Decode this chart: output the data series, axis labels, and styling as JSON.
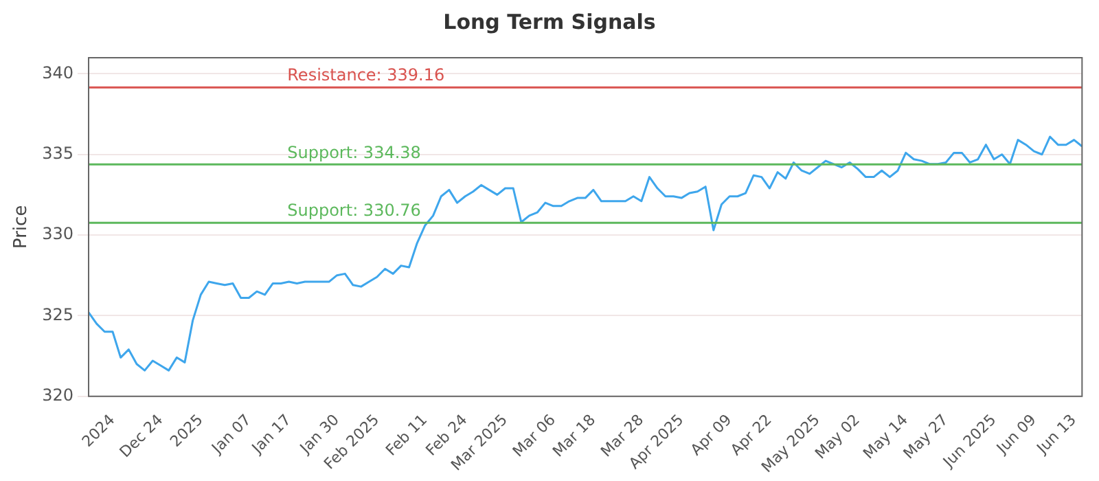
{
  "chart_data": {
    "type": "line",
    "title": "Long Term Signals",
    "ylabel": "Price",
    "categories": [
      null,
      null,
      null,
      "2024",
      null,
      null,
      null,
      null,
      null,
      "Dec 24",
      null,
      null,
      null,
      null,
      "2025",
      null,
      null,
      null,
      null,
      null,
      "Jan 07",
      null,
      null,
      null,
      null,
      "Jan 17",
      null,
      null,
      null,
      null,
      null,
      "Jan 30",
      null,
      null,
      null,
      null,
      "Feb 2025",
      null,
      null,
      null,
      null,
      null,
      "Feb 11",
      null,
      null,
      null,
      null,
      "Feb 24",
      null,
      null,
      null,
      null,
      "Mar 2025",
      null,
      null,
      null,
      null,
      null,
      "Mar 06",
      null,
      null,
      null,
      null,
      "Mar 18",
      null,
      null,
      null,
      null,
      null,
      "Mar 28",
      null,
      null,
      null,
      null,
      "Apr 2025",
      null,
      null,
      null,
      null,
      null,
      "Apr 09",
      null,
      null,
      null,
      null,
      "Apr 22",
      null,
      null,
      null,
      null,
      null,
      "May 2025",
      null,
      null,
      null,
      null,
      "May 02",
      null,
      null,
      null,
      null,
      null,
      "May 14",
      null,
      null,
      null,
      null,
      "May 27",
      null,
      null,
      null,
      null,
      null,
      "Jun 2025",
      null,
      null,
      null,
      null,
      "Jun 09",
      null,
      null,
      null,
      null,
      "Jun 13",
      null
    ],
    "series": [
      {
        "color": "#3ea6ec",
        "values": [
          325.2,
          324.5,
          324.0,
          324.0,
          322.4,
          322.9,
          322.0,
          321.6,
          322.2,
          321.9,
          321.6,
          322.4,
          322.1,
          324.7,
          326.3,
          327.1,
          327.0,
          326.9,
          327.0,
          326.1,
          326.1,
          326.5,
          326.3,
          327.0,
          327.0,
          327.1,
          327.0,
          327.1,
          327.1,
          327.1,
          327.1,
          327.5,
          327.6,
          326.9,
          326.8,
          327.1,
          327.4,
          327.9,
          327.6,
          328.1,
          328.0,
          329.5,
          330.6,
          331.2,
          332.4,
          332.8,
          332.0,
          332.4,
          332.7,
          333.1,
          332.8,
          332.5,
          332.9,
          332.9,
          330.8,
          331.2,
          331.4,
          332.0,
          331.8,
          331.8,
          332.1,
          332.3,
          332.3,
          332.8,
          332.1,
          332.1,
          332.1,
          332.1,
          332.4,
          332.1,
          333.6,
          332.9,
          332.4,
          332.4,
          332.3,
          332.6,
          332.7,
          333.0,
          330.3,
          331.9,
          332.4,
          332.4,
          332.6,
          333.7,
          333.6,
          332.9,
          333.9,
          333.5,
          334.5,
          334.0,
          333.8,
          334.2,
          334.6,
          334.4,
          334.2,
          334.5,
          334.1,
          333.6,
          333.6,
          334.0,
          333.6,
          334.0,
          335.1,
          334.7,
          334.6,
          334.4,
          334.4,
          334.5,
          335.1,
          335.1,
          334.5,
          334.7,
          335.6,
          334.7,
          335.0,
          334.4,
          335.9,
          335.6,
          335.2,
          335.0,
          336.1,
          335.6,
          335.6,
          335.9,
          335.5
        ]
      }
    ],
    "ylim": [
      320,
      341
    ],
    "yticks": [
      320,
      325,
      330,
      335,
      340
    ],
    "grid": "y",
    "legend": false,
    "marker": "none",
    "line_style": "solid",
    "ref_lines": [
      {
        "axis": "y",
        "value": 339.16,
        "label": "Resistance: 339.16",
        "color": "#d9534f"
      },
      {
        "axis": "y",
        "value": 334.38,
        "label": "Support: 334.38",
        "color": "#5cb85c"
      },
      {
        "axis": "y",
        "value": 330.76,
        "label": "Support: 330.76",
        "color": "#5cb85c"
      }
    ]
  }
}
